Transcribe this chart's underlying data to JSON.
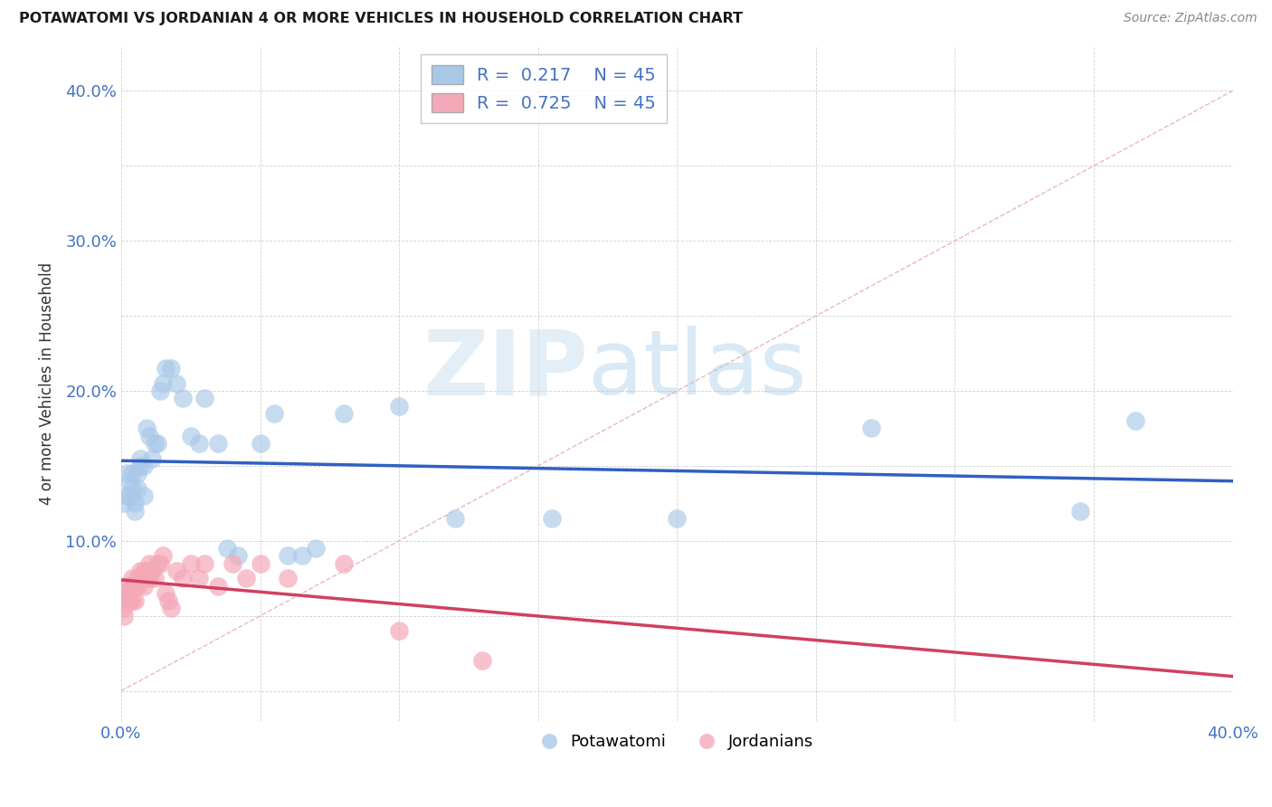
{
  "title": "POTAWATOMI VS JORDANIAN 4 OR MORE VEHICLES IN HOUSEHOLD CORRELATION CHART",
  "source": "Source: ZipAtlas.com",
  "ylabel": "4 or more Vehicles in Household",
  "xlim": [
    0.0,
    0.4
  ],
  "ylim": [
    -0.02,
    0.43
  ],
  "potawatomi_R": 0.217,
  "potawatomi_N": 45,
  "jordanian_R": 0.725,
  "jordanian_N": 45,
  "blue_color": "#a8c8e8",
  "pink_color": "#f4a8b8",
  "blue_line_color": "#3060c0",
  "pink_line_color": "#d04060",
  "diagonal_color": "#e8b0b8",
  "watermark_zip": "ZIP",
  "watermark_atlas": "atlas",
  "potawatomi_x": [
    0.001,
    0.002,
    0.002,
    0.003,
    0.003,
    0.004,
    0.004,
    0.005,
    0.005,
    0.006,
    0.006,
    0.007,
    0.007,
    0.008,
    0.008,
    0.009,
    0.01,
    0.011,
    0.012,
    0.013,
    0.014,
    0.015,
    0.016,
    0.018,
    0.02,
    0.022,
    0.025,
    0.028,
    0.03,
    0.035,
    0.038,
    0.042,
    0.05,
    0.055,
    0.06,
    0.065,
    0.07,
    0.08,
    0.1,
    0.12,
    0.155,
    0.2,
    0.27,
    0.345,
    0.365
  ],
  "potawatomi_y": [
    0.125,
    0.13,
    0.145,
    0.13,
    0.14,
    0.135,
    0.145,
    0.12,
    0.125,
    0.135,
    0.145,
    0.15,
    0.155,
    0.15,
    0.13,
    0.175,
    0.17,
    0.155,
    0.165,
    0.165,
    0.2,
    0.205,
    0.215,
    0.215,
    0.205,
    0.195,
    0.17,
    0.165,
    0.195,
    0.165,
    0.095,
    0.09,
    0.165,
    0.185,
    0.09,
    0.09,
    0.095,
    0.185,
    0.19,
    0.115,
    0.115,
    0.115,
    0.175,
    0.12,
    0.18
  ],
  "jordanian_x": [
    0.001,
    0.001,
    0.001,
    0.002,
    0.002,
    0.002,
    0.003,
    0.003,
    0.003,
    0.004,
    0.004,
    0.004,
    0.005,
    0.005,
    0.006,
    0.006,
    0.007,
    0.007,
    0.008,
    0.008,
    0.009,
    0.009,
    0.01,
    0.01,
    0.011,
    0.012,
    0.013,
    0.014,
    0.015,
    0.016,
    0.017,
    0.018,
    0.02,
    0.022,
    0.025,
    0.028,
    0.03,
    0.035,
    0.04,
    0.045,
    0.05,
    0.06,
    0.08,
    0.1,
    0.13
  ],
  "jordanian_y": [
    0.05,
    0.055,
    0.06,
    0.06,
    0.065,
    0.07,
    0.06,
    0.065,
    0.07,
    0.06,
    0.07,
    0.075,
    0.06,
    0.07,
    0.07,
    0.075,
    0.075,
    0.08,
    0.07,
    0.08,
    0.075,
    0.08,
    0.075,
    0.085,
    0.08,
    0.075,
    0.085,
    0.085,
    0.09,
    0.065,
    0.06,
    0.055,
    0.08,
    0.075,
    0.085,
    0.075,
    0.085,
    0.07,
    0.085,
    0.075,
    0.085,
    0.075,
    0.085,
    0.04,
    0.02
  ]
}
